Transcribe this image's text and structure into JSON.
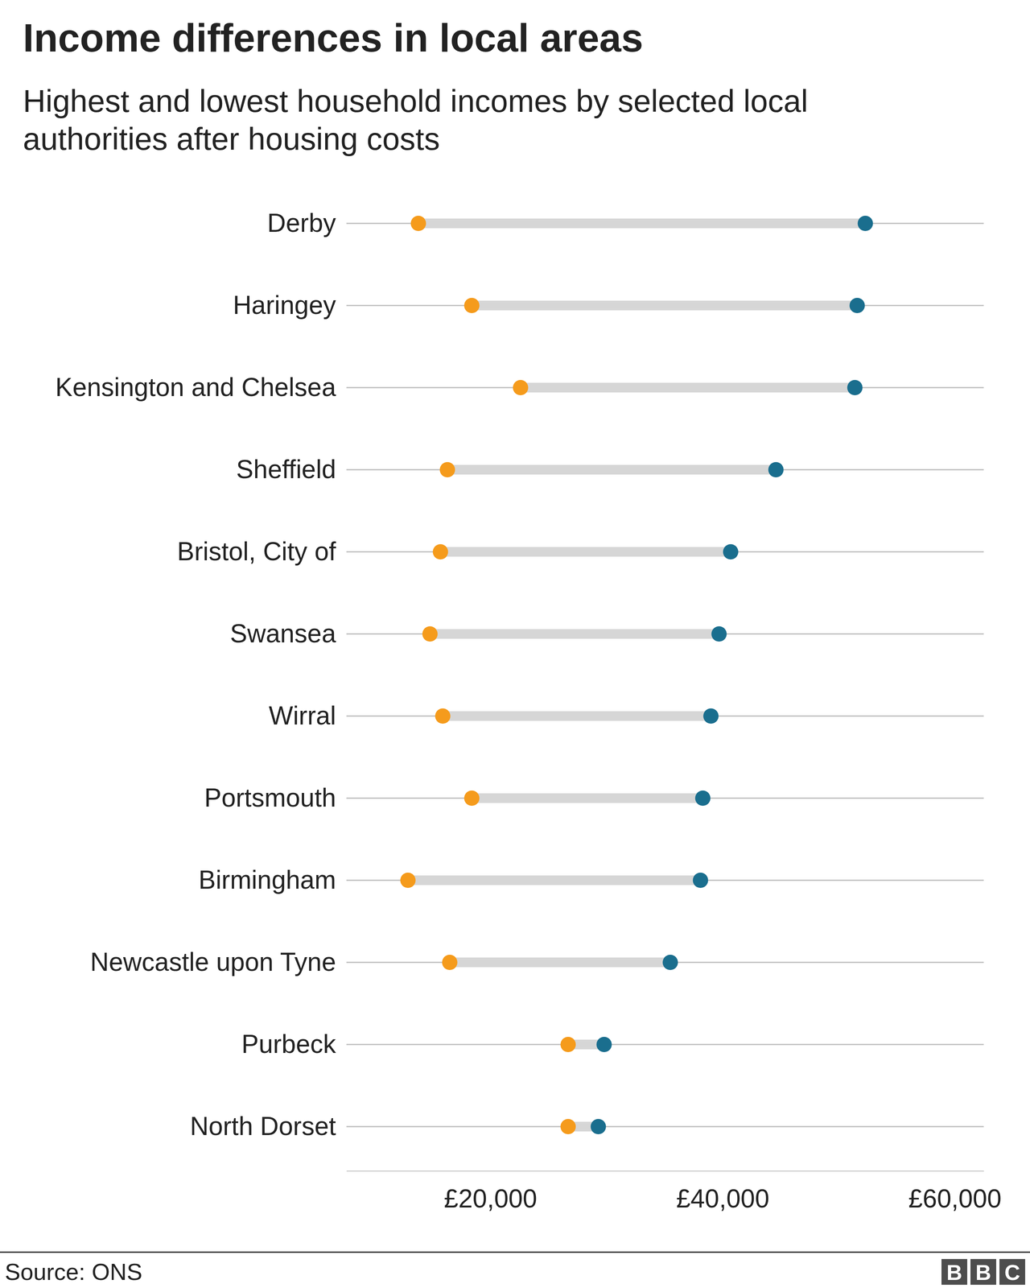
{
  "chart_data": {
    "type": "dumbbell",
    "orientation": "horizontal",
    "title": "Income differences in local areas",
    "subtitle": "Highest and lowest household incomes by selected local authorities after housing costs",
    "categories": [
      "Derby",
      "Haringey",
      "Kensington and Chelsea",
      "Sheffield",
      "Bristol, City of",
      "Swansea",
      "Wirral",
      "Portsmouth",
      "Birmingham",
      "Newcastle upon Tyne",
      "Purbeck",
      "North Dorset"
    ],
    "series": [
      {
        "color": "#f59b1c",
        "values": [
          13800,
          18400,
          22600,
          16300,
          15700,
          14800,
          15900,
          18400,
          12900,
          16500,
          26700,
          26700
        ]
      },
      {
        "color": "#1a6e8e",
        "values": [
          52300,
          51600,
          51400,
          44600,
          40700,
          39700,
          39000,
          38300,
          38100,
          35500,
          29800,
          29300
        ]
      }
    ],
    "xlim": [
      7600,
      62500
    ],
    "xticks": [
      {
        "value": 20000,
        "label": "£20,000"
      },
      {
        "value": 40000,
        "label": "£40,000"
      },
      {
        "value": 60000,
        "label": "£60,000"
      }
    ],
    "grid": true,
    "source": "Source: ONS",
    "logo": "BBC"
  }
}
